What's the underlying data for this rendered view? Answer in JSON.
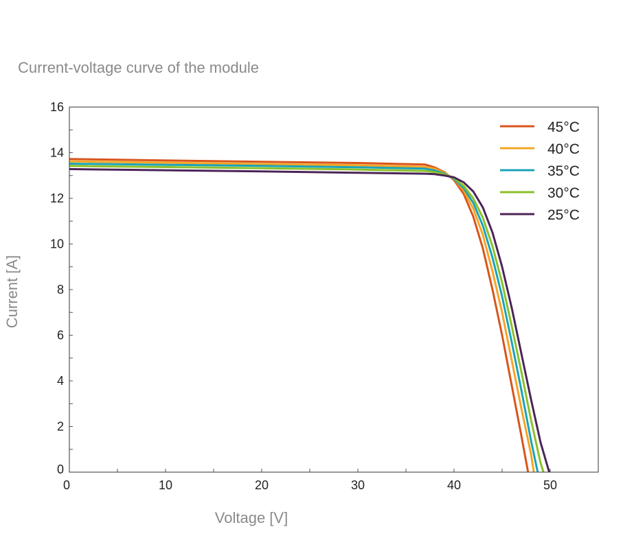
{
  "chart_data": {
    "type": "line",
    "title": "Current-voltage curve of the module",
    "xlabel": "Voltage [V]",
    "ylabel": "Current [A]",
    "xlim": [
      0,
      55
    ],
    "ylim": [
      0,
      16
    ],
    "x_ticks": [
      "0",
      "10",
      "20",
      "30",
      "40",
      "50"
    ],
    "y_ticks": [
      "0",
      "2",
      "4",
      "6",
      "8",
      "10",
      "12",
      "14",
      "16"
    ],
    "grid": false,
    "legend_position": "top-right",
    "series": [
      {
        "name": "45°C",
        "color": "#d9541a",
        "points": [
          [
            0,
            13.72
          ],
          [
            20,
            13.6
          ],
          [
            30,
            13.55
          ],
          [
            37,
            13.48
          ],
          [
            38,
            13.35
          ],
          [
            39,
            13.15
          ],
          [
            40,
            12.8
          ],
          [
            41,
            12.2
          ],
          [
            42,
            11.2
          ],
          [
            43,
            9.8
          ],
          [
            44,
            8.0
          ],
          [
            45,
            6.0
          ],
          [
            46,
            3.8
          ],
          [
            47,
            1.6
          ],
          [
            47.7,
            0
          ]
        ]
      },
      {
        "name": "40°C",
        "color": "#f5a524",
        "points": [
          [
            0,
            13.62
          ],
          [
            20,
            13.5
          ],
          [
            30,
            13.45
          ],
          [
            37,
            13.38
          ],
          [
            38,
            13.3
          ],
          [
            39,
            13.12
          ],
          [
            40,
            12.85
          ],
          [
            41,
            12.35
          ],
          [
            42,
            11.55
          ],
          [
            43,
            10.4
          ],
          [
            44,
            8.8
          ],
          [
            45,
            7.0
          ],
          [
            46,
            4.9
          ],
          [
            47,
            2.8
          ],
          [
            48,
            0.8
          ],
          [
            48.3,
            0
          ]
        ]
      },
      {
        "name": "35°C",
        "color": "#1aa3b8",
        "points": [
          [
            0,
            13.52
          ],
          [
            20,
            13.42
          ],
          [
            30,
            13.36
          ],
          [
            37,
            13.3
          ],
          [
            38,
            13.22
          ],
          [
            39,
            13.08
          ],
          [
            40,
            12.85
          ],
          [
            41,
            12.45
          ],
          [
            42,
            11.8
          ],
          [
            43,
            10.8
          ],
          [
            44,
            9.4
          ],
          [
            45,
            7.7
          ],
          [
            46,
            5.7
          ],
          [
            47,
            3.6
          ],
          [
            48,
            1.4
          ],
          [
            48.7,
            0
          ]
        ]
      },
      {
        "name": "30°C",
        "color": "#8cbf2a",
        "points": [
          [
            0,
            13.42
          ],
          [
            20,
            13.32
          ],
          [
            30,
            13.26
          ],
          [
            37,
            13.2
          ],
          [
            38,
            13.15
          ],
          [
            39,
            13.05
          ],
          [
            40,
            12.88
          ],
          [
            41,
            12.55
          ],
          [
            42,
            12.0
          ],
          [
            43,
            11.15
          ],
          [
            44,
            9.9
          ],
          [
            45,
            8.3
          ],
          [
            46,
            6.4
          ],
          [
            47,
            4.4
          ],
          [
            48,
            2.3
          ],
          [
            49,
            0.4
          ],
          [
            49.3,
            0
          ]
        ]
      },
      {
        "name": "25°C",
        "color": "#4b2457",
        "points": [
          [
            0,
            13.28
          ],
          [
            20,
            13.18
          ],
          [
            30,
            13.12
          ],
          [
            37,
            13.08
          ],
          [
            38,
            13.06
          ],
          [
            39,
            13.0
          ],
          [
            40,
            12.92
          ],
          [
            41,
            12.7
          ],
          [
            42,
            12.3
          ],
          [
            43,
            11.6
          ],
          [
            44,
            10.5
          ],
          [
            45,
            9.0
          ],
          [
            46,
            7.2
          ],
          [
            47,
            5.2
          ],
          [
            48,
            3.2
          ],
          [
            49,
            1.3
          ],
          [
            49.9,
            0
          ]
        ]
      }
    ]
  }
}
